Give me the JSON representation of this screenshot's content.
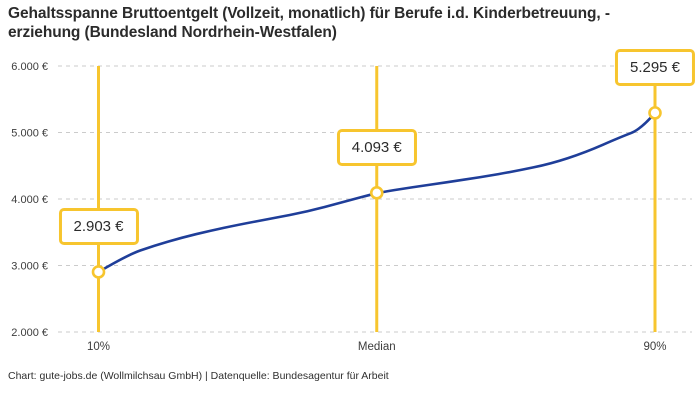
{
  "colors": {
    "accent_yellow": "#f7c52e",
    "line_blue": "#1f3e99",
    "grid": "#cbcbcb",
    "title_text": "#2b2b2b",
    "axis_text": "#3d3d3d",
    "label_text": "#2b2b2b"
  },
  "footer": "Chart: gute-jobs.de (Wollmilchsau GmbH) | Datenquelle: Bundesagentur für Arbeit",
  "chart_data": {
    "type": "line",
    "title": "Gehaltsspanne Bruttoentgelt (Vollzeit, monatlich) für Berufe i.d. Kinderbetreuung, -erziehung (Bundesland Nordrhein-Westfalen)",
    "xlabel": "",
    "ylabel": "",
    "grid": "horizontal-dashed",
    "legend": "none",
    "x_axis": {
      "unit": "percentile",
      "range": [
        10,
        90
      ],
      "tick_labels": [
        "10%",
        "Median",
        "90%"
      ],
      "tick_percentiles": [
        10,
        50,
        90
      ]
    },
    "y_axis": {
      "unit": "EUR",
      "range": [
        2000,
        6000
      ],
      "tick_values": [
        6000,
        5000,
        4000,
        3000,
        2000
      ],
      "tick_labels": [
        "6.000 €",
        "5.000 €",
        "4.000 €",
        "3.000 €",
        "2.000 €"
      ]
    },
    "series": [
      {
        "name": "Bruttoentgelt",
        "x_percentile": [
          10,
          14,
          18,
          22,
          26,
          30,
          35,
          40,
          45,
          50,
          55,
          60,
          65,
          70,
          75,
          80,
          85,
          88,
          90
        ],
        "values": [
          2903,
          3150,
          3300,
          3420,
          3520,
          3610,
          3710,
          3810,
          3950,
          4093,
          4175,
          4250,
          4330,
          4420,
          4530,
          4700,
          4930,
          5050,
          5295
        ]
      }
    ],
    "markers": [
      {
        "percentile": 10,
        "x_label": "10%",
        "value": 2903,
        "label": "2.903 €"
      },
      {
        "percentile": 50,
        "x_label": "Median",
        "value": 4093,
        "label": "4.093 €"
      },
      {
        "percentile": 90,
        "x_label": "90%",
        "value": 5295,
        "label": "5.295 €"
      }
    ]
  }
}
